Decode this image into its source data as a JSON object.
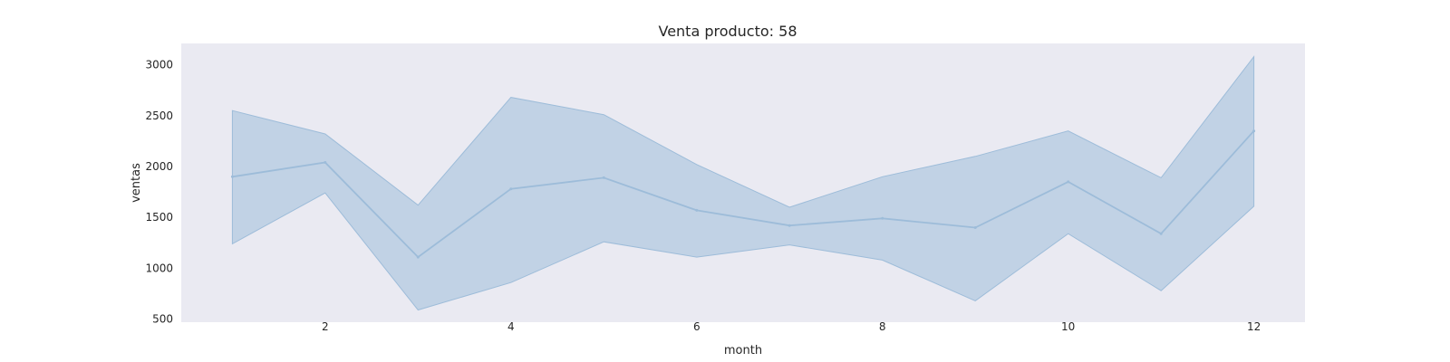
{
  "chart_data": {
    "type": "area",
    "title": "Venta producto: 58",
    "xlabel": "month",
    "ylabel": "ventas",
    "xlim": [
      0.45,
      12.55
    ],
    "ylim": [
      470,
      3210
    ],
    "xticks": [
      2,
      4,
      6,
      8,
      10,
      12
    ],
    "yticks": [
      500,
      1000,
      1500,
      2000,
      2500,
      3000
    ],
    "grid": false,
    "legend": "none",
    "colors": {
      "background": "#eaeaf2",
      "band_fill": "#b3c9e0",
      "line": "#9dbcd9"
    },
    "series": [
      {
        "x": [
          1,
          2,
          3,
          4,
          5,
          6,
          7,
          8,
          9,
          10,
          11,
          12
        ],
        "values": [
          1900,
          2040,
          1110,
          1780,
          1890,
          1570,
          1420,
          1490,
          1400,
          1850,
          1340,
          2350
        ],
        "lower": [
          1240,
          1740,
          590,
          860,
          1260,
          1110,
          1230,
          1080,
          680,
          1340,
          780,
          1610
        ],
        "upper": [
          2550,
          2320,
          1620,
          2680,
          2510,
          2020,
          1600,
          1900,
          2100,
          2350,
          1890,
          3080
        ]
      }
    ]
  }
}
